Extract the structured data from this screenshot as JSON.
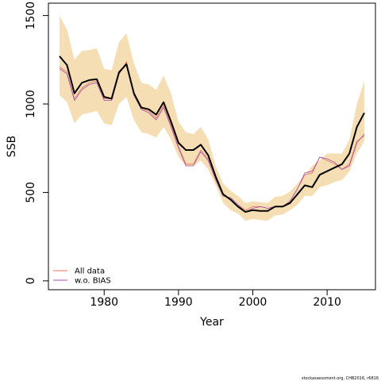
{
  "chart_data": {
    "type": "line",
    "xlabel": "Year",
    "ylabel": "SSB",
    "xlim": [
      1972.5,
      2016.5
    ],
    "ylim": [
      -50,
      1570
    ],
    "x_ticks": [
      1980,
      1990,
      2000,
      2010
    ],
    "x_tick_labels": [
      "1980",
      "1990",
      "2000",
      "2010"
    ],
    "y_ticks": [
      0,
      500,
      1000,
      1500
    ],
    "y_tick_labels": [
      "0",
      "500",
      "1000",
      "1500"
    ],
    "grid": false,
    "legend_position": "bottom-left",
    "x": [
      1974,
      1975,
      1976,
      1977,
      1978,
      1979,
      1980,
      1981,
      1982,
      1983,
      1984,
      1985,
      1986,
      1987,
      1988,
      1989,
      1990,
      1991,
      1992,
      1993,
      1994,
      1995,
      1996,
      1997,
      1998,
      1999,
      2000,
      2001,
      2002,
      2003,
      2004,
      2005,
      2006,
      2007,
      2008,
      2009,
      2010,
      2011,
      2012,
      2013,
      2014,
      2015
    ],
    "band": {
      "upper": [
        1500,
        1420,
        1250,
        1300,
        1305,
        1315,
        1200,
        1190,
        1350,
        1400,
        1230,
        1120,
        1110,
        1080,
        1160,
        1060,
        900,
        840,
        830,
        870,
        800,
        650,
        550,
        510,
        480,
        440,
        450,
        445,
        440,
        475,
        480,
        505,
        550,
        600,
        650,
        680,
        720,
        720,
        720,
        800,
        1000,
        1130
      ],
      "lower": [
        1050,
        1010,
        890,
        940,
        950,
        960,
        890,
        880,
        1000,
        1040,
        910,
        840,
        830,
        810,
        870,
        800,
        700,
        650,
        650,
        680,
        630,
        540,
        440,
        400,
        380,
        340,
        350,
        345,
        340,
        370,
        375,
        400,
        430,
        480,
        480,
        530,
        540,
        560,
        570,
        620,
        720,
        790
      ]
    },
    "series": [
      {
        "name": "",
        "values": [
          1270,
          1220,
          1060,
          1120,
          1135,
          1140,
          1040,
          1030,
          1180,
          1225,
          1060,
          980,
          970,
          940,
          1010,
          900,
          780,
          740,
          740,
          770,
          710,
          590,
          490,
          460,
          420,
          390,
          400,
          395,
          395,
          420,
          420,
          440,
          490,
          540,
          530,
          600,
          620,
          640,
          660,
          720,
          870,
          950
        ]
      },
      {
        "name": "All data",
        "values": [
          1210,
          1180,
          1030,
          1090,
          1120,
          1130,
          1030,
          1030,
          1170,
          1240,
          1050,
          970,
          960,
          920,
          990,
          880,
          760,
          660,
          660,
          740,
          690,
          580,
          480,
          470,
          430,
          400,
          420,
          420,
          410,
          420,
          420,
          450,
          520,
          600,
          610,
          700,
          680,
          660,
          630,
          660,
          790,
          820
        ]
      },
      {
        "name": "w.o. BIAS",
        "values": [
          1200,
          1170,
          1020,
          1080,
          1110,
          1120,
          1020,
          1020,
          1170,
          1230,
          1050,
          970,
          950,
          910,
          980,
          870,
          750,
          650,
          650,
          730,
          680,
          570,
          480,
          470,
          430,
          390,
          410,
          420,
          410,
          420,
          420,
          450,
          520,
          610,
          620,
          700,
          690,
          670,
          630,
          650,
          780,
          830
        ]
      }
    ]
  },
  "colors": {
    "band": "#f5deb3",
    "main": "#000000",
    "all_data": "#e8705e",
    "wo_bias": "#a050b0"
  },
  "credit": "stockassessment.org, CHB2016, r6816"
}
